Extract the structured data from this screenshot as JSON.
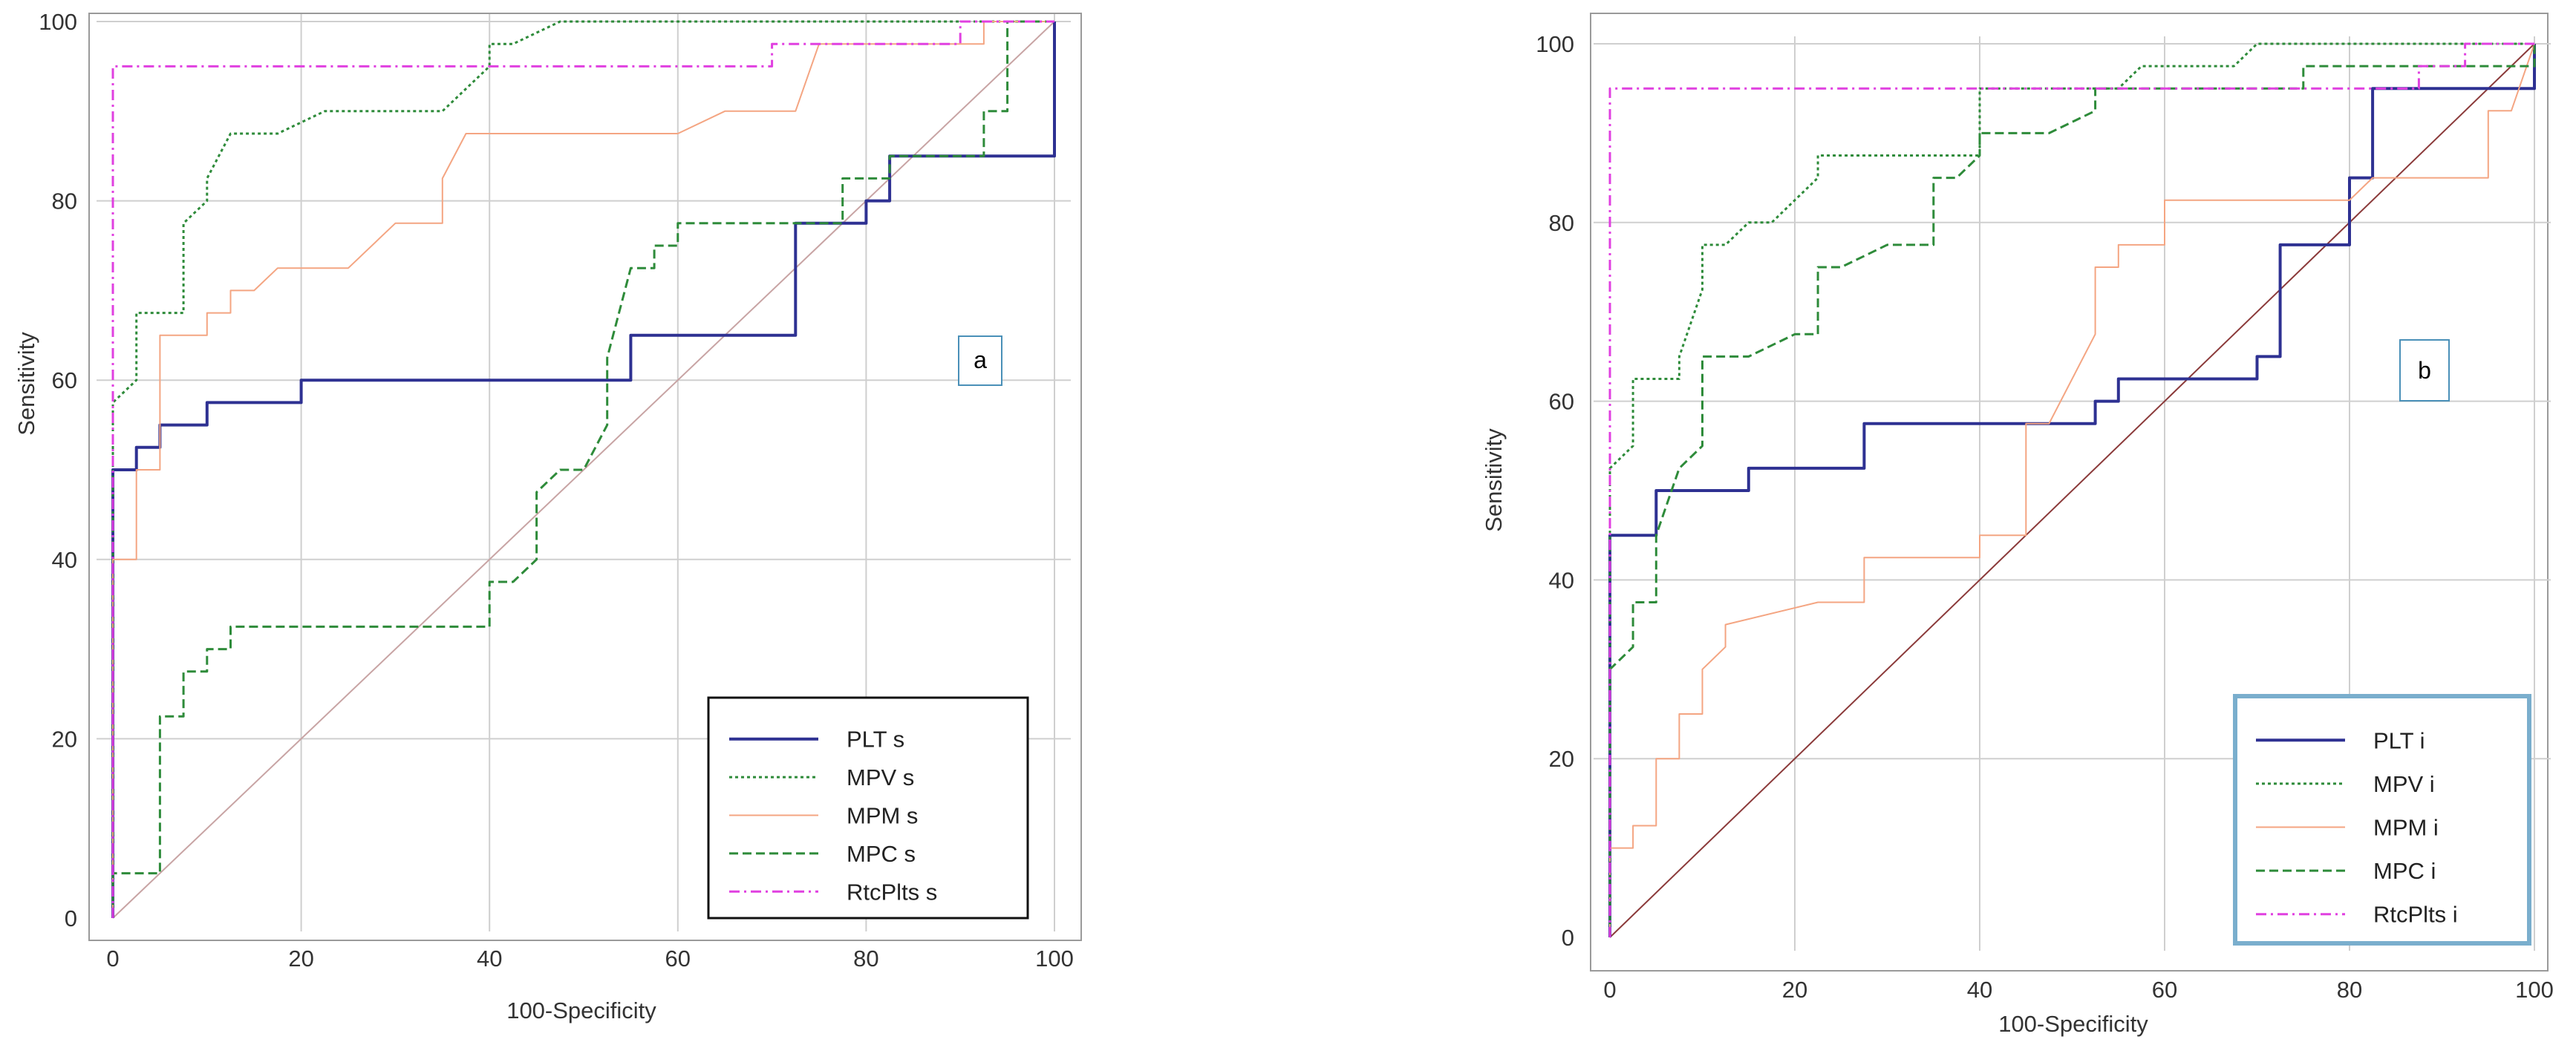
{
  "chart_data": [
    {
      "type": "line",
      "panel_label": "a",
      "xlabel": "100-Specificity",
      "ylabel": "Sensitivity",
      "xlim": [
        0,
        100
      ],
      "ylim": [
        0,
        100
      ],
      "x_ticks": [
        0,
        20,
        40,
        60,
        80,
        100
      ],
      "y_ticks": [
        0,
        20,
        40,
        60,
        80,
        100
      ],
      "grid": true,
      "legend_position": "bottom-right",
      "reference_line": {
        "from": [
          0,
          0
        ],
        "to": [
          100,
          100
        ],
        "color": "#c8a4a4"
      },
      "series": [
        {
          "name": "PLT s",
          "color": "#2e3192",
          "style": "solid",
          "width": 4,
          "points": [
            [
              0,
              0
            ],
            [
              0,
              50
            ],
            [
              2.5,
              50
            ],
            [
              2.5,
              52.5
            ],
            [
              5,
              52.5
            ],
            [
              5,
              55
            ],
            [
              10,
              55
            ],
            [
              10,
              57.5
            ],
            [
              20,
              57.5
            ],
            [
              20,
              60
            ],
            [
              55,
              60
            ],
            [
              55,
              65
            ],
            [
              72.5,
              65
            ],
            [
              72.5,
              77.5
            ],
            [
              80,
              77.5
            ],
            [
              80,
              80
            ],
            [
              82.5,
              80
            ],
            [
              82.5,
              85
            ],
            [
              100,
              85
            ],
            [
              100,
              100
            ]
          ]
        },
        {
          "name": "MPV s",
          "color": "#2e8b3a",
          "style": "dotted",
          "width": 3,
          "points": [
            [
              0,
              0
            ],
            [
              0,
              57.5
            ],
            [
              2.5,
              60
            ],
            [
              2.5,
              67.5
            ],
            [
              7.5,
              67.5
            ],
            [
              7.5,
              77.5
            ],
            [
              10,
              80
            ],
            [
              10,
              82.5
            ],
            [
              12.5,
              87.5
            ],
            [
              17.5,
              87.5
            ],
            [
              22.5,
              90
            ],
            [
              35,
              90
            ],
            [
              40,
              95
            ],
            [
              40,
              97.5
            ],
            [
              42.5,
              97.5
            ],
            [
              47.5,
              100
            ],
            [
              100,
              100
            ]
          ]
        },
        {
          "name": "MPM s",
          "color": "#f4a582",
          "style": "solid",
          "width": 2,
          "points": [
            [
              0,
              0
            ],
            [
              0,
              40
            ],
            [
              2.5,
              40
            ],
            [
              2.5,
              50
            ],
            [
              5,
              50
            ],
            [
              5,
              65
            ],
            [
              10,
              65
            ],
            [
              10,
              67.5
            ],
            [
              12.5,
              67.5
            ],
            [
              12.5,
              70
            ],
            [
              15,
              70
            ],
            [
              17.5,
              72.5
            ],
            [
              25,
              72.5
            ],
            [
              30,
              77.5
            ],
            [
              35,
              77.5
            ],
            [
              35,
              82.5
            ],
            [
              37.5,
              87.5
            ],
            [
              60,
              87.5
            ],
            [
              65,
              90
            ],
            [
              72.5,
              90
            ],
            [
              75,
              97.5
            ],
            [
              92.5,
              97.5
            ],
            [
              92.5,
              100
            ],
            [
              100,
              100
            ]
          ]
        },
        {
          "name": "MPC s",
          "color": "#2e8b3a",
          "style": "dashed",
          "width": 3,
          "points": [
            [
              0,
              0
            ],
            [
              0,
              5
            ],
            [
              5,
              5
            ],
            [
              5,
              22.5
            ],
            [
              7.5,
              22.5
            ],
            [
              7.5,
              27.5
            ],
            [
              10,
              27.5
            ],
            [
              10,
              30
            ],
            [
              12.5,
              30
            ],
            [
              12.5,
              32.5
            ],
            [
              40,
              32.5
            ],
            [
              40,
              37.5
            ],
            [
              42.5,
              37.5
            ],
            [
              45,
              40
            ],
            [
              45,
              47.5
            ],
            [
              47.5,
              50
            ],
            [
              50,
              50
            ],
            [
              52.5,
              55
            ],
            [
              52.5,
              62.5
            ],
            [
              55,
              72.5
            ],
            [
              57.5,
              72.5
            ],
            [
              57.5,
              75
            ],
            [
              60,
              75
            ],
            [
              60,
              77.5
            ],
            [
              77.5,
              77.5
            ],
            [
              77.5,
              82.5
            ],
            [
              82.5,
              82.5
            ],
            [
              82.5,
              85
            ],
            [
              92.5,
              85
            ],
            [
              92.5,
              90
            ],
            [
              95,
              90
            ],
            [
              95,
              100
            ],
            [
              100,
              100
            ]
          ]
        },
        {
          "name": "RtcPlts s",
          "color": "#e040e0",
          "style": "dashdot",
          "width": 3,
          "points": [
            [
              0,
              0
            ],
            [
              0,
              95
            ],
            [
              70,
              95
            ],
            [
              70,
              97.5
            ],
            [
              90,
              97.5
            ],
            [
              90,
              100
            ],
            [
              100,
              100
            ]
          ]
        }
      ]
    },
    {
      "type": "line",
      "panel_label": "b",
      "xlabel": "100-Specificity",
      "ylabel": "Sensitivity",
      "xlim": [
        0,
        100
      ],
      "ylim": [
        0,
        100
      ],
      "x_ticks": [
        0,
        20,
        40,
        60,
        80,
        100
      ],
      "y_ticks": [
        0,
        20,
        40,
        60,
        80,
        100
      ],
      "grid": true,
      "legend_position": "bottom-right",
      "reference_line": {
        "from": [
          0,
          0
        ],
        "to": [
          100,
          100
        ],
        "color": "#8b3a3a"
      },
      "series": [
        {
          "name": "PLT i",
          "color": "#2e3192",
          "style": "solid",
          "width": 4,
          "points": [
            [
              0,
              0
            ],
            [
              0,
              45
            ],
            [
              5,
              45
            ],
            [
              5,
              50
            ],
            [
              15,
              50
            ],
            [
              15,
              52.5
            ],
            [
              27.5,
              52.5
            ],
            [
              27.5,
              57.5
            ],
            [
              52.5,
              57.5
            ],
            [
              52.5,
              60
            ],
            [
              55,
              60
            ],
            [
              55,
              62.5
            ],
            [
              70,
              62.5
            ],
            [
              70,
              65
            ],
            [
              72.5,
              65
            ],
            [
              72.5,
              77.5
            ],
            [
              80,
              77.5
            ],
            [
              80,
              85
            ],
            [
              82.5,
              85
            ],
            [
              82.5,
              95
            ],
            [
              100,
              95
            ],
            [
              100,
              100
            ]
          ]
        },
        {
          "name": "MPV i",
          "color": "#2e8b3a",
          "style": "dotted",
          "width": 3,
          "points": [
            [
              0,
              0
            ],
            [
              0,
              52.5
            ],
            [
              2.5,
              55
            ],
            [
              2.5,
              62.5
            ],
            [
              7.5,
              62.5
            ],
            [
              7.5,
              65
            ],
            [
              10,
              72.5
            ],
            [
              10,
              77.5
            ],
            [
              12.5,
              77.5
            ],
            [
              15,
              80
            ],
            [
              17.5,
              80
            ],
            [
              22.5,
              85
            ],
            [
              22.5,
              87.5
            ],
            [
              40,
              87.5
            ],
            [
              40,
              95
            ],
            [
              55,
              95
            ],
            [
              57.5,
              97.5
            ],
            [
              67.5,
              97.5
            ],
            [
              70,
              100
            ],
            [
              100,
              100
            ]
          ]
        },
        {
          "name": "MPM i",
          "color": "#f4a582",
          "style": "solid",
          "width": 2,
          "points": [
            [
              0,
              0
            ],
            [
              0,
              10
            ],
            [
              2.5,
              10
            ],
            [
              2.5,
              12.5
            ],
            [
              5,
              12.5
            ],
            [
              5,
              20
            ],
            [
              7.5,
              20
            ],
            [
              7.5,
              25
            ],
            [
              10,
              25
            ],
            [
              10,
              30
            ],
            [
              12.5,
              32.5
            ],
            [
              12.5,
              35
            ],
            [
              22.5,
              37.5
            ],
            [
              27.5,
              37.5
            ],
            [
              27.5,
              42.5
            ],
            [
              40,
              42.5
            ],
            [
              40,
              45
            ],
            [
              45,
              45
            ],
            [
              45,
              57.5
            ],
            [
              47.5,
              57.5
            ],
            [
              52.5,
              67.5
            ],
            [
              52.5,
              75
            ],
            [
              55,
              75
            ],
            [
              55,
              77.5
            ],
            [
              60,
              77.5
            ],
            [
              60,
              82.5
            ],
            [
              80,
              82.5
            ],
            [
              82.5,
              85
            ],
            [
              95,
              85
            ],
            [
              95,
              92.5
            ],
            [
              97.5,
              92.5
            ],
            [
              100,
              100
            ]
          ]
        },
        {
          "name": "MPC i",
          "color": "#2e8b3a",
          "style": "dashed",
          "width": 3,
          "points": [
            [
              0,
              0
            ],
            [
              0,
              30
            ],
            [
              2.5,
              32.5
            ],
            [
              2.5,
              37.5
            ],
            [
              5,
              37.5
            ],
            [
              5,
              45
            ],
            [
              7.5,
              52.5
            ],
            [
              10,
              55
            ],
            [
              10,
              65
            ],
            [
              15,
              65
            ],
            [
              20,
              67.5
            ],
            [
              22.5,
              67.5
            ],
            [
              22.5,
              75
            ],
            [
              25,
              75
            ],
            [
              30,
              77.5
            ],
            [
              35,
              77.5
            ],
            [
              35,
              85
            ],
            [
              37.5,
              85
            ],
            [
              40,
              87.5
            ],
            [
              40,
              90
            ],
            [
              47.5,
              90
            ],
            [
              52.5,
              92.5
            ],
            [
              52.5,
              95
            ],
            [
              75,
              95
            ],
            [
              75,
              97.5
            ],
            [
              100,
              97.5
            ],
            [
              100,
              100
            ]
          ]
        },
        {
          "name": "RtcPlts i",
          "color": "#e040e0",
          "style": "dashdot",
          "width": 3,
          "points": [
            [
              0,
              0
            ],
            [
              0,
              95
            ],
            [
              87.5,
              95
            ],
            [
              87.5,
              97.5
            ],
            [
              92.5,
              97.5
            ],
            [
              92.5,
              100
            ],
            [
              100,
              100
            ]
          ]
        }
      ]
    }
  ]
}
